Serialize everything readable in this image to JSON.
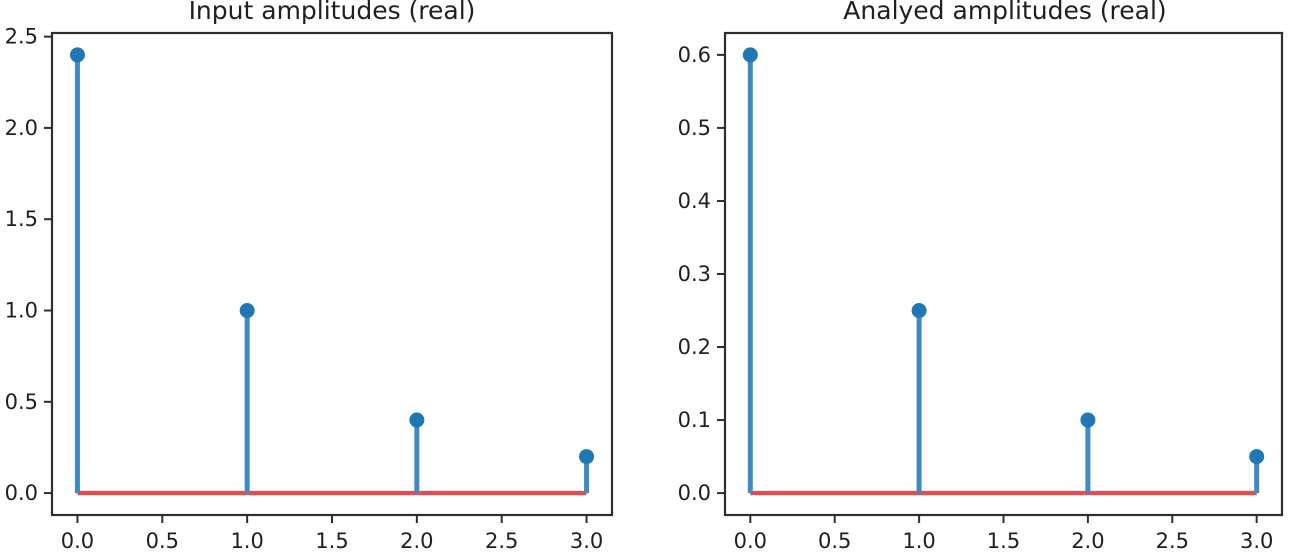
{
  "figure": {
    "background": "#ffffff",
    "spine_color": "#2e2e2e",
    "tick_color": "#2e2e2e",
    "text_color": "#1f1f1f"
  },
  "chart_data": [
    {
      "type": "stem",
      "title": "Input amplitudes (real)",
      "x": [
        0.0,
        1.0,
        2.0,
        3.0
      ],
      "values": [
        2.4,
        1.0,
        0.4,
        0.2
      ],
      "xlabel": "",
      "ylabel": "",
      "xlim": [
        -0.15,
        3.15
      ],
      "ylim": [
        -0.12,
        2.52
      ],
      "xticks": [
        0.0,
        0.5,
        1.0,
        1.5,
        2.0,
        2.5,
        3.0
      ],
      "xtick_labels": [
        "0.0",
        "0.5",
        "1.0",
        "1.5",
        "2.0",
        "2.5",
        "3.0"
      ],
      "yticks": [
        0.0,
        0.5,
        1.0,
        1.5,
        2.0,
        2.5
      ],
      "ytick_labels": [
        "0.0",
        "0.5",
        "1.0",
        "1.5",
        "2.0",
        "2.5"
      ],
      "grid": false,
      "legend": null,
      "baseline_y": 0.0,
      "baseline_span": [
        0.0,
        3.0
      ],
      "colors": {
        "stem": "#3d8ac4",
        "marker": "#1f77b4",
        "baseline": "#e04f4f"
      }
    },
    {
      "type": "stem",
      "title": "Analyed amplitudes (real)",
      "x": [
        0.0,
        1.0,
        2.0,
        3.0
      ],
      "values": [
        0.6,
        0.25,
        0.1,
        0.05
      ],
      "xlabel": "",
      "ylabel": "",
      "xlim": [
        -0.15,
        3.15
      ],
      "ylim": [
        -0.03,
        0.63
      ],
      "xticks": [
        0.0,
        0.5,
        1.0,
        1.5,
        2.0,
        2.5,
        3.0
      ],
      "xtick_labels": [
        "0.0",
        "0.5",
        "1.0",
        "1.5",
        "2.0",
        "2.5",
        "3.0"
      ],
      "yticks": [
        0.0,
        0.1,
        0.2,
        0.3,
        0.4,
        0.5,
        0.6
      ],
      "ytick_labels": [
        "0.0",
        "0.1",
        "0.2",
        "0.3",
        "0.4",
        "0.5",
        "0.6"
      ],
      "grid": false,
      "legend": null,
      "baseline_y": 0.0,
      "baseline_span": [
        0.0,
        3.0
      ],
      "colors": {
        "stem": "#3d8ac4",
        "marker": "#1f77b4",
        "baseline": "#e04f4f"
      }
    }
  ]
}
